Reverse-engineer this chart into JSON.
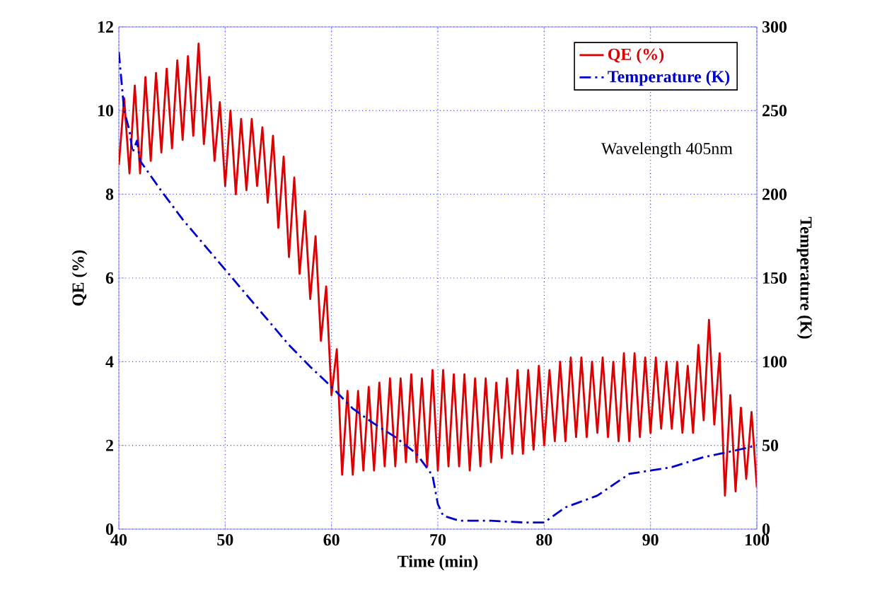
{
  "chart_data": {
    "type": "line",
    "xlabel": "Time (min)",
    "ylabel": "QE (%)",
    "y2label": "Temperature (K)",
    "annotations": [
      "Wavelength 405nm"
    ],
    "xlim": [
      40,
      100
    ],
    "xticks": [
      40,
      50,
      60,
      70,
      80,
      90,
      100
    ],
    "ylim": [
      0,
      12
    ],
    "yticks": [
      0,
      2,
      4,
      6,
      8,
      10,
      12
    ],
    "y2lim": [
      0,
      300
    ],
    "y2ticks": [
      0,
      50,
      100,
      150,
      200,
      250,
      300
    ],
    "grid": true,
    "legend": "top right",
    "series": [
      {
        "name": "QE (%)",
        "color": "#dd0000",
        "line_style": "solid",
        "x": [
          40.0,
          40.5,
          41.0,
          41.5,
          42.0,
          42.5,
          43.0,
          43.5,
          44.0,
          44.5,
          45.0,
          45.5,
          46.0,
          46.5,
          47.0,
          47.5,
          48.0,
          48.5,
          49.0,
          49.5,
          50.0,
          50.5,
          51.0,
          51.5,
          52.0,
          52.5,
          53.0,
          53.5,
          54.0,
          54.5,
          55.0,
          55.5,
          56.0,
          56.5,
          57.0,
          57.5,
          58.0,
          58.5,
          59.0,
          59.5,
          60.0,
          60.5,
          61.0,
          61.5,
          62.0,
          62.5,
          63.0,
          63.5,
          64.0,
          64.5,
          65.0,
          65.5,
          66.0,
          66.5,
          67.0,
          67.5,
          68.0,
          68.5,
          69.0,
          69.5,
          70.0,
          70.5,
          71.0,
          71.5,
          72.0,
          72.5,
          73.0,
          73.5,
          74.0,
          74.5,
          75.0,
          75.5,
          76.0,
          76.5,
          77.0,
          77.5,
          78.0,
          78.5,
          79.0,
          79.5,
          80.0,
          80.5,
          81.0,
          81.5,
          82.0,
          82.5,
          83.0,
          83.5,
          84.0,
          84.5,
          85.0,
          85.5,
          86.0,
          86.5,
          87.0,
          87.5,
          88.0,
          88.5,
          89.0,
          89.5,
          90.0,
          90.5,
          91.0,
          91.5,
          92.0,
          92.5,
          93.0,
          93.5,
          94.0,
          94.5,
          95.0,
          95.5,
          96.0,
          96.5,
          97.0,
          97.5,
          98.0,
          98.5,
          99.0,
          99.5,
          100.0
        ],
        "values": [
          8.7,
          10.3,
          8.5,
          10.6,
          8.5,
          10.8,
          8.8,
          10.9,
          9.0,
          11.0,
          9.1,
          11.2,
          9.3,
          11.3,
          9.4,
          11.6,
          9.2,
          10.8,
          8.8,
          10.2,
          8.2,
          10.0,
          8.0,
          9.8,
          8.1,
          9.8,
          8.2,
          9.6,
          7.8,
          9.4,
          7.2,
          8.9,
          6.5,
          8.4,
          6.1,
          7.6,
          5.5,
          7.0,
          4.5,
          5.8,
          3.2,
          4.3,
          1.3,
          3.3,
          1.3,
          3.3,
          1.4,
          3.4,
          1.4,
          3.5,
          1.5,
          3.6,
          1.5,
          3.6,
          1.6,
          3.7,
          1.6,
          3.6,
          1.5,
          3.8,
          1.4,
          3.8,
          1.5,
          3.7,
          1.5,
          3.7,
          1.4,
          3.6,
          1.5,
          3.6,
          1.6,
          3.5,
          1.7,
          3.6,
          1.8,
          3.8,
          1.8,
          3.8,
          1.9,
          3.9,
          2.0,
          3.8,
          2.1,
          4.0,
          2.1,
          4.1,
          2.2,
          4.1,
          2.2,
          4.0,
          2.3,
          4.1,
          2.2,
          4.0,
          2.1,
          4.2,
          2.1,
          4.2,
          2.2,
          4.1,
          2.3,
          4.1,
          2.4,
          4.0,
          2.4,
          4.0,
          2.3,
          3.9,
          2.3,
          4.4,
          2.6,
          5.0,
          2.5,
          4.2,
          0.8,
          3.2,
          0.9,
          2.9,
          1.2,
          2.8,
          1.0
        ]
      },
      {
        "name": "Temperature (K)",
        "color": "#0000cc",
        "axis": "y2",
        "line_style": "dashed",
        "x": [
          40,
          40.5,
          41,
          41.3,
          41.7,
          42,
          44,
          46,
          48,
          50,
          52,
          54,
          56,
          58,
          60,
          62,
          64,
          66,
          68,
          69.5,
          70,
          70.5,
          72,
          75,
          78,
          80,
          82,
          85,
          88,
          90,
          92,
          95,
          98,
          100
        ],
        "values": [
          285,
          250,
          238,
          225,
          232,
          220,
          202,
          185,
          170,
          155,
          140,
          125,
          110,
          97,
          85,
          72,
          63,
          55,
          45,
          32,
          15,
          8,
          5,
          5,
          4,
          4,
          13,
          20,
          33,
          35,
          37,
          43,
          47,
          50
        ]
      }
    ]
  }
}
